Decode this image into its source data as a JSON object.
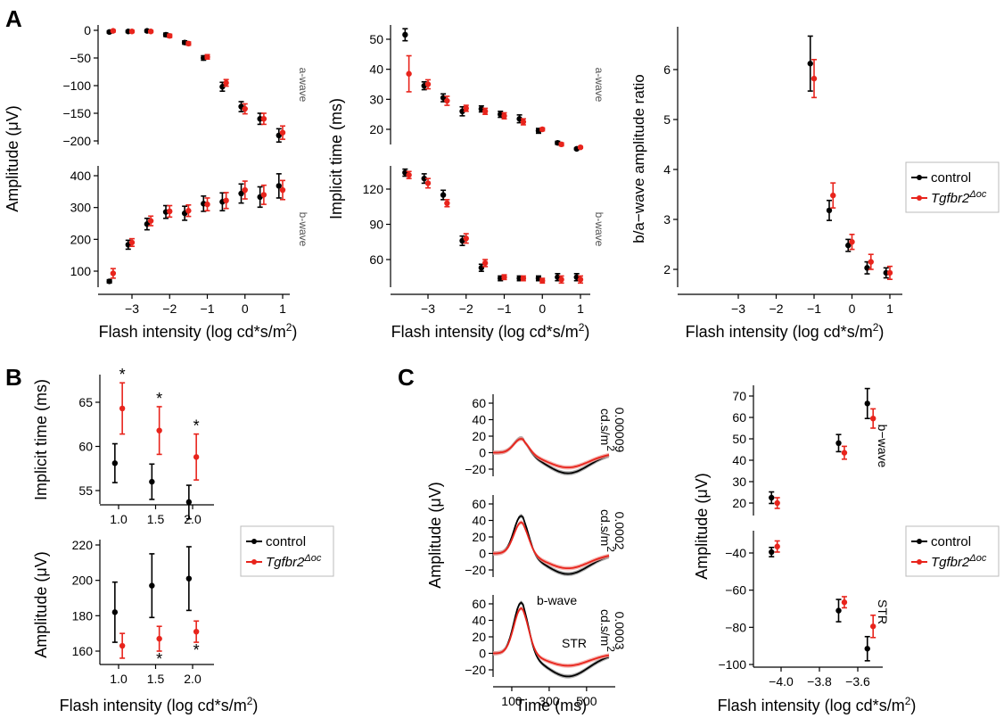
{
  "colors": {
    "control": "#000000",
    "tgf": "#e8241c",
    "ctrl_band": "#9a9a9a",
    "tgf_band": "#f2a39e"
  },
  "panel_labels": [
    "A",
    "B",
    "C"
  ],
  "legend": {
    "control": "control",
    "tgf_base": "Tgfbr2",
    "tgf_sup": "Δoc"
  },
  "chart_data": [
    {
      "id": "A-amp-awave",
      "type": "scatter",
      "panel": "A",
      "facet": "a-wave",
      "xlabel": "Flash intensity (log cd*s/m²)",
      "ylabel": "Amplitude (μV)",
      "ylim": [
        -215,
        5
      ],
      "series": [
        {
          "name": "control",
          "x": [
            -3.6,
            -3.1,
            -2.6,
            -2.1,
            -1.6,
            -1.1,
            -0.6,
            -0.1,
            0.4,
            0.9
          ],
          "values": [
            -3,
            -2,
            -1,
            -8,
            -22,
            -50,
            -102,
            -138,
            -160,
            -190
          ],
          "err": [
            2,
            2,
            2,
            3,
            3,
            4,
            8,
            9,
            10,
            12
          ]
        },
        {
          "name": "Tgfbr2Δoc",
          "x": [
            -3.5,
            -3.0,
            -2.5,
            -2.0,
            -1.5,
            -1.0,
            -0.5,
            0.0,
            0.5,
            1.0
          ],
          "values": [
            -1,
            -2,
            -2,
            -10,
            -24,
            -48,
            -95,
            -142,
            -160,
            -185
          ],
          "err": [
            2,
            2,
            2,
            3,
            3,
            4,
            6,
            9,
            10,
            12
          ]
        }
      ]
    },
    {
      "id": "A-amp-bwave",
      "type": "scatter",
      "panel": "A",
      "facet": "b-wave",
      "xlabel": "Flash intensity (log cd*s/m²)",
      "ylabel": "Amplitude (μV)",
      "ylim": [
        60,
        420
      ],
      "series": [
        {
          "name": "control",
          "x": [
            -3.6,
            -3.1,
            -2.6,
            -2.1,
            -1.6,
            -1.1,
            -0.6,
            -0.1,
            0.4,
            0.9
          ],
          "values": [
            68,
            183,
            248,
            286,
            282,
            312,
            318,
            344,
            333,
            368
          ],
          "err": [
            5,
            14,
            18,
            20,
            22,
            24,
            28,
            30,
            32,
            38
          ]
        },
        {
          "name": "Tgfbr2Δoc",
          "x": [
            -3.5,
            -3.0,
            -2.5,
            -2.0,
            -1.5,
            -1.0,
            -0.5,
            0.0,
            0.5,
            1.0
          ],
          "values": [
            93,
            190,
            258,
            288,
            290,
            310,
            322,
            355,
            340,
            355
          ],
          "err": [
            15,
            12,
            15,
            18,
            18,
            20,
            25,
            28,
            30,
            30
          ]
        }
      ]
    },
    {
      "id": "A-impl-awave",
      "type": "scatter",
      "panel": "A",
      "facet": "a-wave",
      "xlabel": "Flash intensity (log cd*s/m²)",
      "ylabel": "Implicit time (ms)",
      "ylim": [
        10,
        56
      ],
      "series": [
        {
          "name": "control",
          "x": [
            -3.6,
            -3.1,
            -2.6,
            -2.1,
            -1.6,
            -1.1,
            -0.6,
            -0.1,
            0.4,
            0.9
          ],
          "values": [
            51.5,
            34.5,
            30.5,
            26,
            26.8,
            25,
            23.5,
            19.5,
            15.5,
            13.5
          ],
          "err": [
            2,
            1.3,
            1.3,
            1.5,
            1.0,
            1.0,
            1.3,
            0.8,
            0.5,
            0.3
          ]
        },
        {
          "name": "Tgfbr2Δoc",
          "x": [
            -3.5,
            -3.0,
            -2.5,
            -2.0,
            -1.5,
            -1.0,
            -0.5,
            0.0,
            0.5,
            1.0
          ],
          "values": [
            38.5,
            35,
            29.5,
            27,
            26,
            24.5,
            22.5,
            20,
            15,
            14
          ],
          "err": [
            6,
            1.5,
            1.5,
            1,
            1,
            1,
            1,
            0.5,
            0.5,
            0.3
          ]
        }
      ]
    },
    {
      "id": "A-impl-bwave",
      "type": "scatter",
      "panel": "A",
      "facet": "b-wave",
      "xlabel": "Flash intensity (log cd*s/m²)",
      "ylabel": "Implicit time (ms)",
      "ylim": [
        40,
        140
      ],
      "series": [
        {
          "name": "control",
          "x": [
            -3.6,
            -3.1,
            -2.6,
            -2.1,
            -1.6,
            -1.1,
            -0.6,
            -0.1,
            0.4,
            0.9
          ],
          "values": [
            134,
            129,
            115,
            76,
            53,
            44,
            44,
            44,
            45,
            45
          ],
          "err": [
            3,
            4,
            4,
            4,
            3,
            2,
            2,
            2,
            3,
            3
          ]
        },
        {
          "name": "Tgfbr2Δoc",
          "x": [
            -3.5,
            -3.0,
            -2.5,
            -2.0,
            -1.5,
            -1.0,
            -0.5,
            0.0,
            0.5,
            1.0
          ],
          "values": [
            132,
            125,
            108,
            78,
            57,
            45,
            44,
            42,
            43,
            43
          ],
          "err": [
            3,
            4,
            3,
            4,
            3,
            2,
            2,
            2,
            3,
            3
          ]
        }
      ]
    },
    {
      "id": "A-ratio",
      "type": "scatter",
      "panel": "A",
      "xlabel": "Flash intensity (log cd*s/m²)",
      "ylabel": "b/a−wave amplitude ratio",
      "ylim": [
        1.7,
        6.8
      ],
      "series": [
        {
          "name": "control",
          "x": [
            -1.1,
            -0.6,
            -0.1,
            0.4,
            0.9
          ],
          "values": [
            6.12,
            3.18,
            2.48,
            2.03,
            1.93
          ],
          "err": [
            0.55,
            0.2,
            0.12,
            0.12,
            0.1
          ]
        },
        {
          "name": "Tgfbr2Δoc",
          "x": [
            -1.0,
            -0.5,
            0.0,
            0.5,
            1.0
          ],
          "values": [
            5.82,
            3.48,
            2.55,
            2.15,
            1.93
          ],
          "err": [
            0.38,
            0.25,
            0.15,
            0.15,
            0.13
          ]
        }
      ]
    },
    {
      "id": "B-implicit",
      "type": "scatter",
      "panel": "B",
      "xlabel": "",
      "ylabel": "Implicit time (ms)",
      "ylim": [
        52,
        68
      ],
      "series": [
        {
          "name": "control",
          "x": [
            0.95,
            1.45,
            1.95
          ],
          "values": [
            58.1,
            56,
            53.7
          ],
          "err": [
            2.2,
            2,
            1.9
          ]
        },
        {
          "name": "Tgfbr2Δoc",
          "x": [
            1.05,
            1.55,
            2.05
          ],
          "values": [
            64.3,
            61.8,
            58.8
          ],
          "err": [
            2.9,
            2.7,
            2.6
          ]
        }
      ],
      "annotations": [
        "*",
        "*",
        "*"
      ]
    },
    {
      "id": "B-amplitude",
      "type": "scatter",
      "panel": "B",
      "xlabel": "Flash intensity (log cd*s/m²)",
      "ylabel": "Amplitude (μV)",
      "ylim": [
        155,
        223
      ],
      "series": [
        {
          "name": "control",
          "x": [
            0.95,
            1.45,
            1.95
          ],
          "values": [
            182,
            197,
            201
          ],
          "err": [
            17,
            18,
            18
          ]
        },
        {
          "name": "Tgfbr2Δoc",
          "x": [
            1.05,
            1.55,
            2.05
          ],
          "values": [
            163,
            167,
            171
          ],
          "err": [
            7,
            7,
            6
          ]
        }
      ],
      "annotations": [
        "*",
        "*"
      ]
    },
    {
      "id": "C-traces",
      "type": "line",
      "panel": "C",
      "xlabel": "Time (ms)",
      "ylabel": "Amplitude (μV)",
      "xlim": [
        0,
        620
      ],
      "ylim": [
        -30,
        80
      ],
      "facets": [
        {
          "label_1": "0.00009",
          "label_2": "cd.s/m²",
          "peak": {
            "control": 18,
            "tgf": 17
          },
          "trough": {
            "control": -25,
            "tgf": -18
          }
        },
        {
          "label_1": "0.0002",
          "label_2": "cd.s/m²",
          "peak": {
            "control": 46,
            "tgf": 38
          },
          "trough": {
            "control": -25,
            "tgf": -18
          }
        },
        {
          "label_1": "0.0003",
          "label_2": "cd.s/m²",
          "peak": {
            "control": 62,
            "tgf": 55
          },
          "trough": {
            "control": -28,
            "tgf": -15
          }
        }
      ],
      "annotations": {
        "bwave": "b-wave",
        "str": "STR"
      }
    },
    {
      "id": "C-amp",
      "type": "scatter",
      "panel": "C",
      "xlabel": "Flash intensity (log cd*s/m²)",
      "ylabel": "Amplitude (μV)",
      "facets": [
        {
          "label": "b−wave",
          "ylim": [
            13,
            75
          ],
          "series": [
            {
              "name": "control",
              "x": [
                -4.05,
                -3.7,
                -3.55
              ],
              "values": [
                22.5,
                48,
                66.5
              ],
              "err": [
                2.7,
                4,
                7
              ]
            },
            {
              "name": "Tgfbr2Δoc",
              "x": [
                -4.02,
                -3.67,
                -3.52
              ],
              "values": [
                20,
                43.5,
                59.5
              ],
              "err": [
                2.5,
                3,
                4.5
              ]
            }
          ]
        },
        {
          "label": "STR",
          "ylim": [
            -101,
            -30
          ],
          "series": [
            {
              "name": "control",
              "x": [
                -4.05,
                -3.7,
                -3.55
              ],
              "values": [
                -39.5,
                -71,
                -91.5
              ],
              "err": [
                2.5,
                6,
                6.5
              ]
            },
            {
              "name": "Tgfbr2Δoc",
              "x": [
                -4.02,
                -3.67,
                -3.52
              ],
              "values": [
                -36.5,
                -66.5,
                -79.5
              ],
              "err": [
                3,
                3,
                6
              ]
            }
          ]
        }
      ]
    }
  ],
  "text": {
    "xlabel_log": "Flash intensity (log cd*s/m",
    "xlabel_close": ")",
    "sup2": "2",
    "time_label": "Time (ms)",
    "amp_label": "Amplitude (μV)",
    "impl_label": "Implicit time (ms)",
    "ratio_label": "b/a−wave amplitude ratio",
    "awave": "a-wave",
    "bwave": "b-wave",
    "bwave_dash": "b−wave",
    "str": "STR"
  }
}
